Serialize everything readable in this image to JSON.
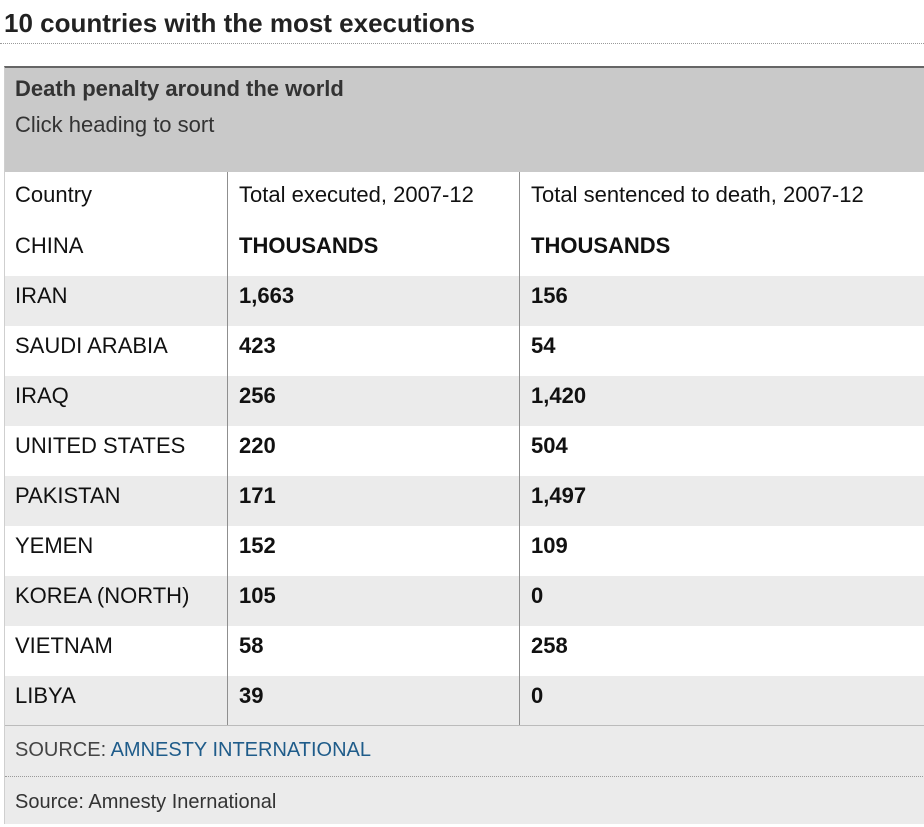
{
  "page": {
    "heading": "10 countries with the most executions"
  },
  "table": {
    "caption_title": "Death penalty around the world",
    "caption_sub": "Click heading to sort",
    "columns": [
      "Country",
      "Total executed, 2007-12",
      "Total sentenced to death, 2007-12"
    ],
    "rows": [
      {
        "country": "CHINA",
        "executed": "THOUSANDS",
        "sentenced": "THOUSANDS"
      },
      {
        "country": "IRAN",
        "executed": "1,663",
        "sentenced": "156"
      },
      {
        "country": "SAUDI ARABIA",
        "executed": "423",
        "sentenced": "54"
      },
      {
        "country": "IRAQ",
        "executed": "256",
        "sentenced": "1,420"
      },
      {
        "country": "UNITED STATES",
        "executed": "220",
        "sentenced": "504"
      },
      {
        "country": "PAKISTAN",
        "executed": "171",
        "sentenced": "1,497"
      },
      {
        "country": "YEMEN",
        "executed": "152",
        "sentenced": "109"
      },
      {
        "country": "KOREA (NORTH)",
        "executed": "105",
        "sentenced": "0"
      },
      {
        "country": "VIETNAM",
        "executed": "58",
        "sentenced": "258"
      },
      {
        "country": "LIBYA",
        "executed": "39",
        "sentenced": "0"
      }
    ],
    "source_label": "SOURCE: ",
    "source_link": "AMNESTY INTERNATIONAL",
    "credit": "Source: Amnesty Inernational"
  },
  "colors": {
    "caption_bg": "#c9c9c9",
    "stripe_bg": "#ebebeb",
    "link": "#1f5c8a"
  }
}
